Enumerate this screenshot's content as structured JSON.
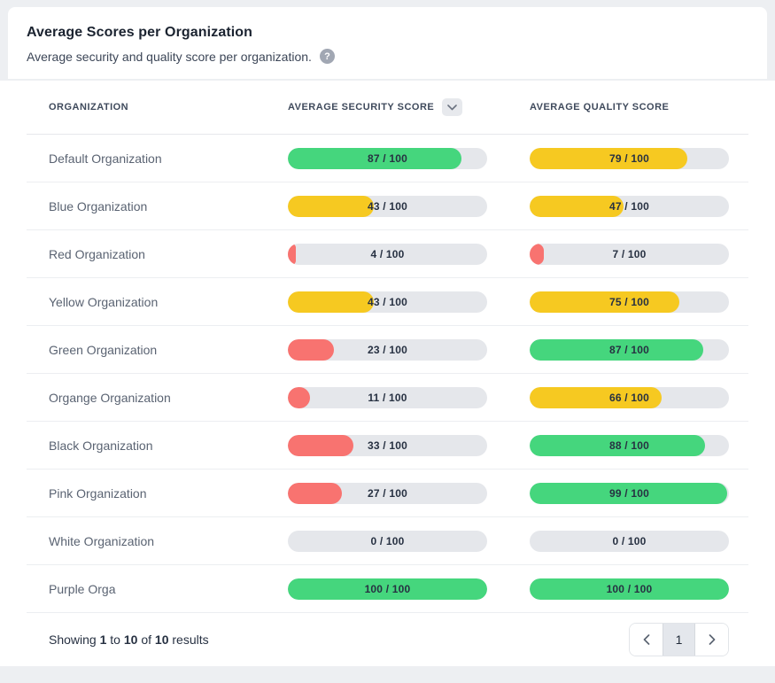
{
  "header": {
    "title": "Average Scores per Organization",
    "subtitle": "Average security and quality score per organization.",
    "help_glyph": "?"
  },
  "table": {
    "columns": {
      "organization": "Organization",
      "security": "Average Security Score",
      "quality": "Average Quality Score"
    },
    "sorted_column": "security",
    "sort_direction": "descending",
    "rows": [
      {
        "name": "Default Organization",
        "security": {
          "value": 87,
          "max": 100,
          "label": "87 / 100",
          "color": "green"
        },
        "quality": {
          "value": 79,
          "max": 100,
          "label": "79 / 100",
          "color": "yellow"
        }
      },
      {
        "name": "Blue Organization",
        "security": {
          "value": 43,
          "max": 100,
          "label": "43 / 100",
          "color": "yellow"
        },
        "quality": {
          "value": 47,
          "max": 100,
          "label": "47 / 100",
          "color": "yellow"
        }
      },
      {
        "name": "Red Organization",
        "security": {
          "value": 4,
          "max": 100,
          "label": "4 / 100",
          "color": "red"
        },
        "quality": {
          "value": 7,
          "max": 100,
          "label": "7 / 100",
          "color": "red"
        }
      },
      {
        "name": "Yellow Organization",
        "security": {
          "value": 43,
          "max": 100,
          "label": "43 / 100",
          "color": "yellow"
        },
        "quality": {
          "value": 75,
          "max": 100,
          "label": "75 / 100",
          "color": "yellow"
        }
      },
      {
        "name": "Green Organization",
        "security": {
          "value": 23,
          "max": 100,
          "label": "23 / 100",
          "color": "red"
        },
        "quality": {
          "value": 87,
          "max": 100,
          "label": "87 / 100",
          "color": "green"
        }
      },
      {
        "name": "Organge Organization",
        "security": {
          "value": 11,
          "max": 100,
          "label": "11 / 100",
          "color": "red"
        },
        "quality": {
          "value": 66,
          "max": 100,
          "label": "66 / 100",
          "color": "yellow"
        }
      },
      {
        "name": "Black Organization",
        "security": {
          "value": 33,
          "max": 100,
          "label": "33 / 100",
          "color": "red"
        },
        "quality": {
          "value": 88,
          "max": 100,
          "label": "88 / 100",
          "color": "green"
        }
      },
      {
        "name": "Pink Organization",
        "security": {
          "value": 27,
          "max": 100,
          "label": "27 / 100",
          "color": "red"
        },
        "quality": {
          "value": 99,
          "max": 100,
          "label": "99 / 100",
          "color": "green"
        }
      },
      {
        "name": "White Organization",
        "security": {
          "value": 0,
          "max": 100,
          "label": "0 / 100",
          "color": "none"
        },
        "quality": {
          "value": 0,
          "max": 100,
          "label": "0 / 100",
          "color": "none"
        }
      },
      {
        "name": "Purple Orga",
        "security": {
          "value": 100,
          "max": 100,
          "label": "100 / 100",
          "color": "green"
        },
        "quality": {
          "value": 100,
          "max": 100,
          "label": "100 / 100",
          "color": "green"
        }
      }
    ]
  },
  "footer": {
    "showing": {
      "prefix": "Showing",
      "from": "1",
      "to_word": "to",
      "to": "10",
      "of_word": "of",
      "total": "10",
      "suffix": "results"
    },
    "pagination": {
      "prev_icon": "chevron-left",
      "current_page": "1",
      "next_icon": "chevron-right"
    }
  },
  "colors": {
    "green": "#45d67d",
    "yellow": "#f6c921",
    "red": "#f87370",
    "track": "#e5e7eb"
  }
}
